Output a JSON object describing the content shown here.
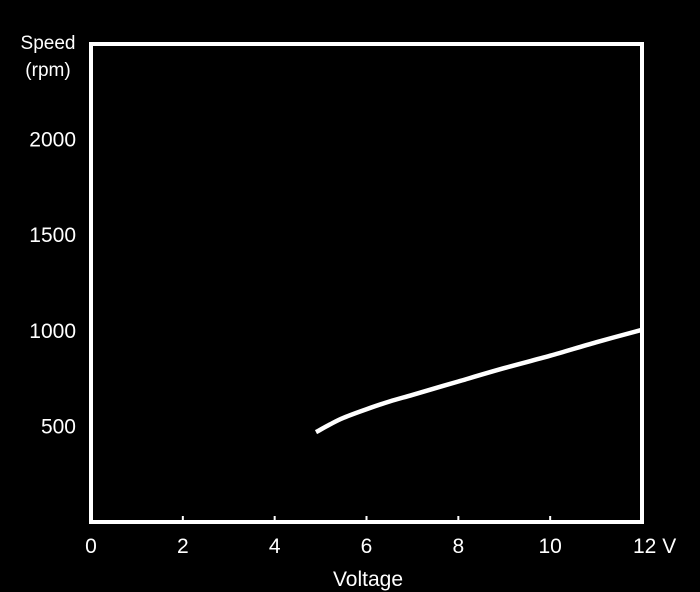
{
  "chart_data": {
    "type": "line",
    "ylabel_line1": "Speed",
    "ylabel_line2": "(rpm)",
    "xlabel": "Voltage",
    "x_ticks": [
      0,
      2,
      4,
      6,
      8,
      10,
      12
    ],
    "x_tick_labels": [
      "0",
      "2",
      "4",
      "6",
      "8",
      "10",
      "12 V"
    ],
    "y_ticks": [
      500,
      1000,
      1500,
      2000
    ],
    "y_tick_labels": [
      "500",
      "1000",
      "1500",
      "2000"
    ],
    "xlim": [
      0,
      12
    ],
    "ylim": [
      0,
      2500
    ],
    "grid": "horizontal",
    "series": [
      {
        "color": "#ffffff",
        "x": [
          4.9,
          5.2,
          5.5,
          6.0,
          6.5,
          7.0,
          8.0,
          9.0,
          10.0,
          11.0,
          12.0
        ],
        "y": [
          470,
          510,
          545,
          590,
          630,
          665,
          735,
          805,
          870,
          940,
          1005
        ]
      }
    ],
    "colors": {
      "background": "#000000",
      "axes": "#ffffff",
      "grid": "#6e6e6e",
      "text": "#ffffff"
    }
  }
}
